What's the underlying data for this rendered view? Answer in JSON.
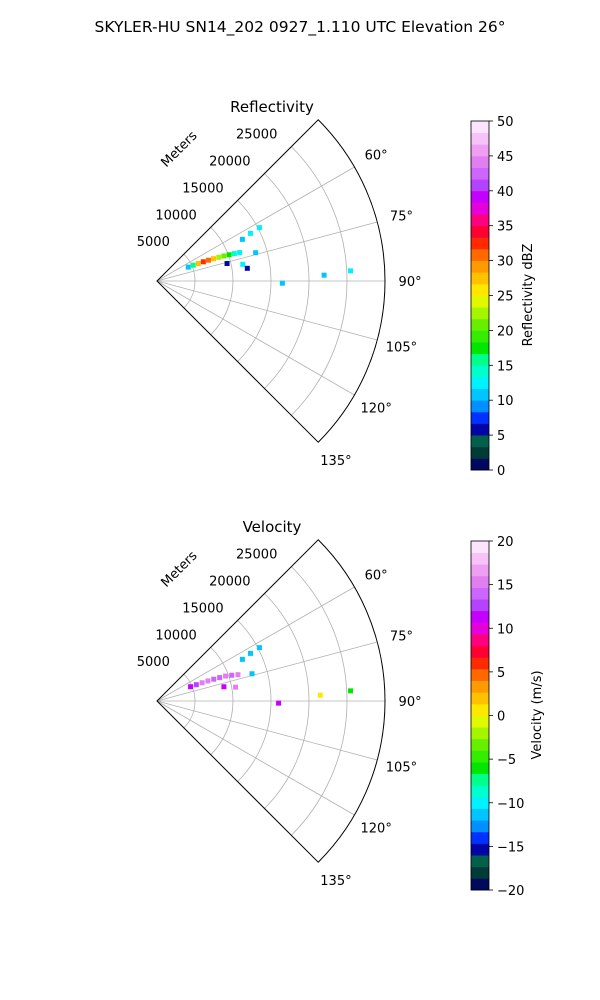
{
  "figure": {
    "suptitle": "SKYLER-HU  SN14_202  0927_1.110 UTC Elevation 26°"
  },
  "chart_data": [
    {
      "type": "polar-sector",
      "title": "Reflectivity",
      "range_label": "Meters",
      "range_ticks": [
        "5000",
        "10000",
        "15000",
        "20000",
        "25000"
      ],
      "range_values": [
        5000,
        10000,
        15000,
        20000,
        25000
      ],
      "range_max": 30000,
      "azimuth_ticks": [
        "60°",
        "75°",
        "90°",
        "105°",
        "120°",
        "135°"
      ],
      "azimuth_values": [
        60,
        75,
        90,
        105,
        120,
        135
      ],
      "azimuth_range": [
        45,
        135
      ],
      "colorbar": {
        "label": "Reflectivity dBZ",
        "range": [
          0,
          50
        ],
        "ticks": [
          "0",
          "5",
          "10",
          "15",
          "20",
          "25",
          "30",
          "35",
          "40",
          "45",
          "50"
        ],
        "colors": [
          "#00095f",
          "#003b37",
          "#00604a",
          "#0005a6",
          "#0032ff",
          "#0090ff",
          "#00c5ff",
          "#00f2ff",
          "#00ffcc",
          "#00ff8b",
          "#00e600",
          "#33ee00",
          "#66f000",
          "#a6f500",
          "#e0f800",
          "#ffe700",
          "#ffc200",
          "#ff9a00",
          "#ff6900",
          "#ff2a00",
          "#ff0033",
          "#ff007f",
          "#e600d9",
          "#c400ff",
          "#b442ff",
          "#cc66ff",
          "#e27ff0",
          "#ee9ff2",
          "#f6c2f8",
          "#fce4fd"
        ]
      },
      "echoes": [
        {
          "az": 66,
          "r": 4500,
          "val": 10
        },
        {
          "az": 66.5,
          "r": 5200,
          "val": 15
        },
        {
          "az": 67,
          "r": 5900,
          "val": 28
        },
        {
          "az": 67.5,
          "r": 6600,
          "val": 33
        },
        {
          "az": 68,
          "r": 7300,
          "val": 30
        },
        {
          "az": 68.5,
          "r": 8000,
          "val": 27
        },
        {
          "az": 69,
          "r": 8700,
          "val": 23
        },
        {
          "az": 69.5,
          "r": 9400,
          "val": 20
        },
        {
          "az": 70,
          "r": 10100,
          "val": 18
        },
        {
          "az": 70.5,
          "r": 10800,
          "val": 14
        },
        {
          "az": 71,
          "r": 11500,
          "val": 12
        },
        {
          "az": 64,
          "r": 12500,
          "val": 11
        },
        {
          "az": 63,
          "r": 13800,
          "val": 13
        },
        {
          "az": 62.5,
          "r": 15200,
          "val": 12
        },
        {
          "az": 74,
          "r": 13500,
          "val": 11
        },
        {
          "az": 76,
          "r": 9500,
          "val": 6
        },
        {
          "az": 79,
          "r": 11500,
          "val": 12
        },
        {
          "az": 91,
          "r": 16500,
          "val": 11
        },
        {
          "az": 88,
          "r": 22000,
          "val": 11
        },
        {
          "az": 87,
          "r": 25500,
          "val": 13
        },
        {
          "az": 82,
          "r": 12000,
          "val": 6
        }
      ]
    },
    {
      "type": "polar-sector",
      "title": "Velocity",
      "range_label": "Meters",
      "range_ticks": [
        "5000",
        "10000",
        "15000",
        "20000",
        "25000"
      ],
      "range_values": [
        5000,
        10000,
        15000,
        20000,
        25000
      ],
      "range_max": 30000,
      "azimuth_ticks": [
        "60°",
        "75°",
        "90°",
        "105°",
        "120°",
        "135°"
      ],
      "azimuth_values": [
        60,
        75,
        90,
        105,
        120,
        135
      ],
      "azimuth_range": [
        45,
        135
      ],
      "colorbar": {
        "label": "Velocity (m/s)",
        "range": [
          -20,
          20
        ],
        "ticks": [
          "−20",
          "−15",
          "−10",
          "−5",
          "0",
          "5",
          "10",
          "15",
          "20"
        ],
        "colors": [
          "#00095f",
          "#003b37",
          "#00604a",
          "#0005a6",
          "#0032ff",
          "#0090ff",
          "#00c5ff",
          "#00f2ff",
          "#00ffcc",
          "#00ff8b",
          "#00e600",
          "#33ee00",
          "#66f000",
          "#a6f500",
          "#e0f800",
          "#ffe700",
          "#ffc200",
          "#ff9a00",
          "#ff6900",
          "#ff2a00",
          "#ff0033",
          "#ff007f",
          "#e600d9",
          "#c400ff",
          "#b442ff",
          "#cc66ff",
          "#e27ff0",
          "#ee9ff2",
          "#f6c2f8",
          "#fce4fd"
        ]
      },
      "echoes": [
        {
          "az": 67,
          "r": 4800,
          "val": 11
        },
        {
          "az": 67.5,
          "r": 5600,
          "val": 12
        },
        {
          "az": 68,
          "r": 6400,
          "val": 15
        },
        {
          "az": 68.5,
          "r": 7200,
          "val": 15
        },
        {
          "az": 69,
          "r": 8000,
          "val": 14
        },
        {
          "az": 69.5,
          "r": 8800,
          "val": 14
        },
        {
          "az": 70,
          "r": 9600,
          "val": 15
        },
        {
          "az": 71,
          "r": 10400,
          "val": 14
        },
        {
          "az": 72,
          "r": 11200,
          "val": 15
        },
        {
          "az": 64,
          "r": 12500,
          "val": -11
        },
        {
          "az": 63,
          "r": 13800,
          "val": -12
        },
        {
          "az": 62.5,
          "r": 15200,
          "val": -11
        },
        {
          "az": 74,
          "r": 13000,
          "val": -12
        },
        {
          "az": 80,
          "r": 10500,
          "val": 15
        },
        {
          "az": 78,
          "r": 9000,
          "val": 11
        },
        {
          "az": 91,
          "r": 16000,
          "val": 11
        },
        {
          "az": 88,
          "r": 21500,
          "val": 1
        },
        {
          "az": 87,
          "r": 25500,
          "val": -6
        }
      ]
    }
  ]
}
